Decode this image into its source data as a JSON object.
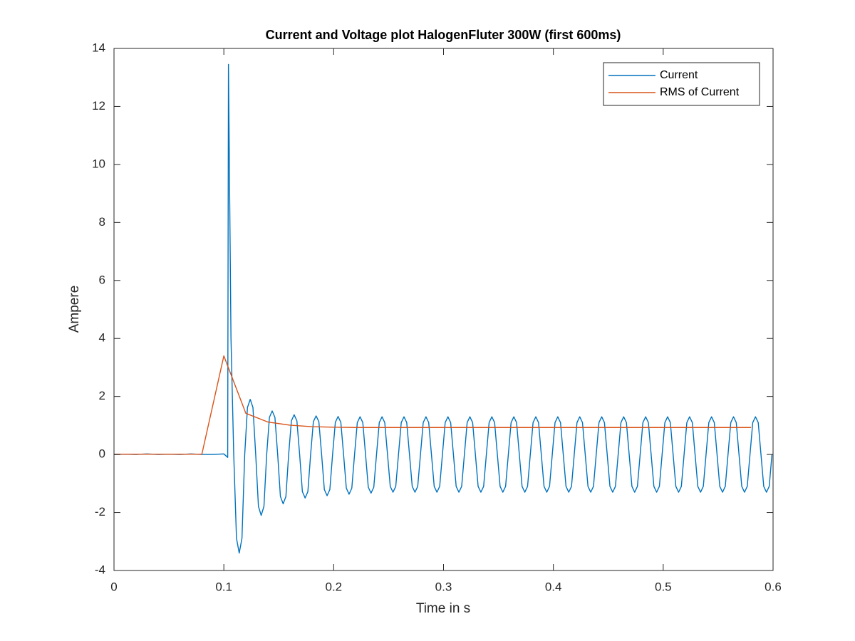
{
  "chart_data": {
    "type": "line",
    "title": "Current and Voltage plot HalogenFluter 300W (first 600ms)",
    "x_label": "Time in s",
    "y_label": "Ampere",
    "xlim": [
      0,
      0.6
    ],
    "xticks": [
      0,
      0.1,
      0.2,
      0.3,
      0.4,
      0.5,
      0.6
    ],
    "ylim": [
      -4,
      14
    ],
    "yticks": [
      -4,
      -2,
      0,
      2,
      4,
      6,
      8,
      10,
      12,
      14
    ],
    "legend": "northeast",
    "series": [
      {
        "name": "Current",
        "color": "#0072bd",
        "x": [
          0,
          0.01,
          0.02,
          0.03,
          0.04,
          0.05,
          0.06,
          0.07,
          0.08,
          0.09,
          0.1,
          0.1035,
          0.1042,
          0.1065,
          0.109,
          0.1115,
          0.114,
          0.1165,
          0.119,
          0.1215,
          0.124,
          0.1265,
          0.129,
          0.1315,
          0.134,
          0.1365,
          0.139,
          0.1415,
          0.144,
          0.1465,
          0.149,
          0.1515,
          0.154,
          0.1565,
          0.159,
          0.1615,
          0.164,
          0.1665,
          0.169,
          0.1715,
          0.174,
          0.1765,
          0.179,
          0.1815,
          0.184,
          0.1865,
          0.189,
          0.1915,
          0.194,
          0.1965,
          0.199,
          0.2015,
          0.204,
          0.2065,
          0.209,
          0.2115,
          0.214,
          0.2165,
          0.219,
          0.2215,
          0.224,
          0.2265,
          0.229,
          0.2315,
          0.234,
          0.2365,
          0.239,
          0.2415,
          0.244,
          0.2465,
          0.249,
          0.2515,
          0.254,
          0.2565,
          0.259,
          0.2615,
          0.264,
          0.2665,
          0.269,
          0.2715,
          0.274,
          0.2765,
          0.279,
          0.2815,
          0.284,
          0.2865,
          0.289,
          0.2915,
          0.294,
          0.2965,
          0.299,
          0.3015,
          0.304,
          0.3065,
          0.309,
          0.3115,
          0.314,
          0.3165,
          0.319,
          0.3215,
          0.324,
          0.3265,
          0.329,
          0.3315,
          0.334,
          0.3365,
          0.339,
          0.3415,
          0.344,
          0.3465,
          0.349,
          0.3515,
          0.354,
          0.3565,
          0.359,
          0.3615,
          0.364,
          0.3665,
          0.369,
          0.3715,
          0.374,
          0.3765,
          0.379,
          0.3815,
          0.384,
          0.3865,
          0.389,
          0.3915,
          0.394,
          0.3965,
          0.399,
          0.4015,
          0.404,
          0.4065,
          0.409,
          0.4115,
          0.414,
          0.4165,
          0.419,
          0.4215,
          0.424,
          0.4265,
          0.429,
          0.4315,
          0.434,
          0.4365,
          0.439,
          0.4415,
          0.444,
          0.4465,
          0.449,
          0.4515,
          0.454,
          0.4565,
          0.459,
          0.4615,
          0.464,
          0.4665,
          0.469,
          0.4715,
          0.474,
          0.4765,
          0.479,
          0.4815,
          0.484,
          0.4865,
          0.489,
          0.4915,
          0.494,
          0.4965,
          0.499,
          0.5015,
          0.504,
          0.5065,
          0.509,
          0.5115,
          0.514,
          0.5165,
          0.519,
          0.5215,
          0.524,
          0.5265,
          0.529,
          0.5315,
          0.534,
          0.5365,
          0.539,
          0.5415,
          0.544,
          0.5465,
          0.549,
          0.5515,
          0.554,
          0.5565,
          0.559,
          0.5615,
          0.564,
          0.5665,
          0.569,
          0.5715,
          0.574,
          0.5765,
          0.579,
          0.5815,
          0.584,
          0.5865,
          0.589,
          0.5915,
          0.594,
          0.5965,
          0.599
        ],
        "values": [
          0,
          0.01,
          0,
          0.02,
          0,
          0.01,
          0,
          0.02,
          0,
          0,
          0.02,
          -0.1,
          13.45,
          4,
          0,
          -2.89,
          -3.4,
          -2.89,
          0,
          1.62,
          1.9,
          1.62,
          0,
          -1.79,
          -2.1,
          -1.79,
          0,
          1.28,
          1.5,
          1.28,
          0,
          -1.45,
          -1.7,
          -1.45,
          0,
          1.16,
          1.37,
          1.16,
          0,
          -1.28,
          -1.5,
          -1.28,
          0,
          1.13,
          1.33,
          1.13,
          0,
          -1.21,
          -1.42,
          -1.21,
          0,
          1.11,
          1.31,
          1.11,
          0,
          -1.16,
          -1.37,
          -1.16,
          0,
          1.1,
          1.3,
          1.1,
          0,
          -1.13,
          -1.33,
          -1.13,
          0,
          1.1,
          1.3,
          1.1,
          0,
          -1.1,
          -1.3,
          -1.1,
          0,
          1.1,
          1.3,
          1.1,
          0,
          -1.1,
          -1.3,
          -1.1,
          0,
          1.1,
          1.3,
          1.1,
          0,
          -1.1,
          -1.3,
          -1.1,
          0,
          1.1,
          1.3,
          1.1,
          0,
          -1.1,
          -1.3,
          -1.1,
          0,
          1.1,
          1.3,
          1.1,
          0,
          -1.1,
          -1.3,
          -1.1,
          0,
          1.1,
          1.3,
          1.1,
          0,
          -1.1,
          -1.3,
          -1.1,
          0,
          1.1,
          1.3,
          1.1,
          0,
          -1.1,
          -1.3,
          -1.1,
          0,
          1.1,
          1.3,
          1.1,
          0,
          -1.1,
          -1.3,
          -1.1,
          0,
          1.1,
          1.3,
          1.1,
          0,
          -1.1,
          -1.3,
          -1.1,
          0,
          1.1,
          1.3,
          1.1,
          0,
          -1.1,
          -1.3,
          -1.1,
          0,
          1.1,
          1.3,
          1.1,
          0,
          -1.1,
          -1.3,
          -1.1,
          0,
          1.1,
          1.3,
          1.1,
          0,
          -1.1,
          -1.3,
          -1.1,
          0,
          1.1,
          1.3,
          1.1,
          0,
          -1.1,
          -1.3,
          -1.1,
          0,
          1.1,
          1.3,
          1.1,
          0,
          -1.1,
          -1.3,
          -1.1,
          0,
          1.1,
          1.3,
          1.1,
          0,
          -1.1,
          -1.3,
          -1.1,
          0,
          1.1,
          1.3,
          1.1,
          0,
          -1.1,
          -1.3,
          -1.1,
          0,
          1.1,
          1.3,
          1.1,
          0,
          -1.1,
          -1.3,
          -1.1,
          0,
          1.1,
          1.3,
          1.1,
          0,
          -1.1,
          -1.3,
          -1.1,
          0
        ]
      },
      {
        "name": "RMS of Current",
        "color": "#d95319",
        "x": [
          0,
          0.02,
          0.04,
          0.06,
          0.08,
          0.1,
          0.12,
          0.14,
          0.16,
          0.18,
          0.2,
          0.22,
          0.24,
          0.26,
          0.28,
          0.3,
          0.32,
          0.34,
          0.36,
          0.38,
          0.4,
          0.42,
          0.44,
          0.46,
          0.48,
          0.5,
          0.52,
          0.54,
          0.56,
          0.58
        ],
        "values": [
          0.01,
          0.01,
          0.01,
          0.01,
          0.01,
          3.4,
          1.42,
          1.12,
          1.01,
          0.96,
          0.94,
          0.93,
          0.93,
          0.93,
          0.93,
          0.93,
          0.93,
          0.93,
          0.93,
          0.93,
          0.93,
          0.93,
          0.93,
          0.93,
          0.93,
          0.93,
          0.93,
          0.93,
          0.93,
          0.93
        ]
      }
    ]
  }
}
